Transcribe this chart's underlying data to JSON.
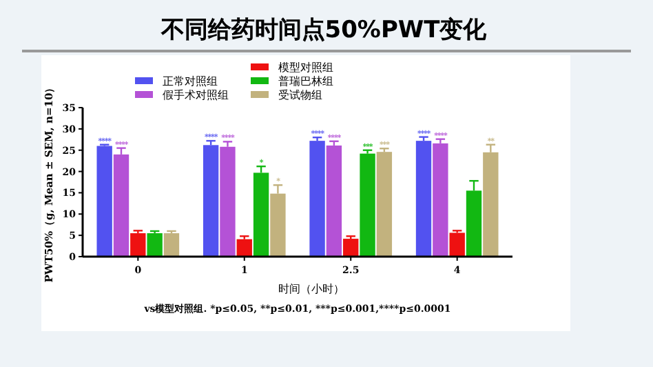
{
  "chart_data": {
    "type": "bar",
    "title": "不同给药时间点50%PWT变化",
    "xlabel": "时间（小时）",
    "ylabel": "PWT50%（g, Mean ± SEM, n=10）",
    "categories": [
      "0",
      "1",
      "2.5",
      "4"
    ],
    "ylim": [
      0,
      35
    ],
    "yticks": [
      0,
      5,
      10,
      15,
      20,
      25,
      30,
      35
    ],
    "legend": "top",
    "grid": false,
    "series": [
      {
        "name": "正常对照组",
        "color": "#5252f0",
        "values": [
          26,
          26.2,
          27.2,
          27.2
        ],
        "errors": [
          0.3,
          1,
          0.8,
          0.9
        ],
        "value_labels": [
          "****",
          "****",
          "****",
          "****"
        ]
      },
      {
        "name": "假手术对照组",
        "color": "#b452d6",
        "values": [
          24,
          25.8,
          26.1,
          26.6
        ],
        "errors": [
          1.5,
          1.2,
          1,
          1
        ],
        "value_labels": [
          "****",
          "****",
          "****",
          "****"
        ]
      },
      {
        "name": "模型对照组",
        "color": "#ee1111",
        "values": [
          5.5,
          4.1,
          4.2,
          5.6
        ],
        "errors": [
          0.6,
          0.7,
          0.6,
          0.5
        ]
      },
      {
        "name": "普瑞巴林组",
        "color": "#12b812",
        "values": [
          5.5,
          19.7,
          24.2,
          15.5
        ],
        "errors": [
          0.5,
          1.5,
          0.8,
          2.3
        ],
        "value_labels": [
          null,
          "*",
          "***",
          null
        ]
      },
      {
        "name": "受试物组",
        "color": "#c2b27e",
        "values": [
          5.5,
          14.8,
          24.6,
          24.5
        ],
        "errors": [
          0.5,
          2,
          0.8,
          1.8
        ],
        "value_labels": [
          null,
          "*",
          "***",
          "**"
        ]
      }
    ],
    "annotations": [
      "vs模型对照组. *p≤0.05, **p≤0.01, ***p≤0.001,****p≤0.0001"
    ]
  }
}
